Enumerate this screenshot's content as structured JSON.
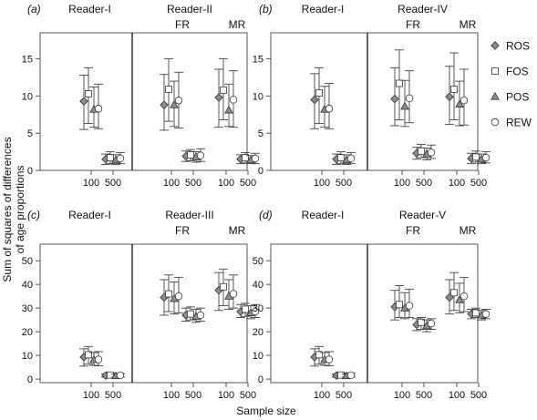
{
  "figure": {
    "ylabel": "Sum of squares of differences\nof age proportions",
    "xlabel": "Sample size",
    "legend": [
      {
        "name": "ROS",
        "marker": "diamond",
        "fill": "#8c8c8c"
      },
      {
        "name": "FOS",
        "marker": "square",
        "fill": "#ffffff"
      },
      {
        "name": "POS",
        "marker": "triangle",
        "fill": "#8c8c8c"
      },
      {
        "name": "REW",
        "marker": "circle",
        "fill": "#ffffff"
      }
    ],
    "colors": {
      "frame": "#555555",
      "error_bar": "#444444",
      "marker_stroke": "#333333",
      "gray_fill": "#8c8c8c"
    }
  },
  "chart_data": [
    {
      "type": "scatter",
      "panel_label": "(a)",
      "left_title": "Reader-I",
      "right_title": "Reader-II",
      "right_subtitles": [
        "FR",
        "MR"
      ],
      "ylim": [
        0,
        18.5
      ],
      "yticks": [
        0,
        5,
        10,
        15
      ],
      "categories": [
        "100",
        "500",
        "100",
        "500",
        "100",
        "500"
      ],
      "errorbars": "yes",
      "series": [
        {
          "name": "ROS",
          "values": [
            9.3,
            1.5,
            8.8,
            1.9,
            9.8,
            1.5
          ],
          "lower": [
            5.5,
            0.8,
            5.4,
            1.2,
            5.8,
            0.9
          ],
          "upper": [
            12.8,
            2.2,
            12.9,
            2.6,
            13.6,
            2.1
          ]
        },
        {
          "name": "FOS",
          "values": [
            10.3,
            1.7,
            10.9,
            2.1,
            10.8,
            1.7
          ],
          "lower": [
            6.3,
            0.9,
            6.6,
            1.3,
            6.8,
            1.0
          ],
          "upper": [
            13.8,
            2.5,
            15.0,
            2.8,
            15.0,
            2.4
          ]
        },
        {
          "name": "POS",
          "values": [
            8.2,
            1.4,
            8.8,
            1.8,
            8.1,
            1.4
          ],
          "lower": [
            5.8,
            0.8,
            5.9,
            1.1,
            5.9,
            0.9
          ],
          "upper": [
            11.2,
            2.1,
            12.0,
            2.5,
            11.6,
            2.0
          ]
        },
        {
          "name": "REW",
          "values": [
            8.3,
            1.6,
            9.4,
            2.0,
            9.5,
            1.6
          ],
          "lower": [
            5.6,
            0.9,
            5.7,
            1.2,
            5.8,
            0.9
          ],
          "upper": [
            11.6,
            2.4,
            13.2,
            2.9,
            13.4,
            2.3
          ]
        }
      ]
    },
    {
      "type": "scatter",
      "panel_label": "(b)",
      "left_title": "Reader-I",
      "right_title": "Reader-IV",
      "right_subtitles": [
        "FR",
        "MR"
      ],
      "ylim": [
        0,
        18.5
      ],
      "yticks": [
        0,
        5,
        10,
        15
      ],
      "categories": [
        "100",
        "500",
        "100",
        "500",
        "100",
        "500"
      ],
      "errorbars": "yes",
      "series": [
        {
          "name": "ROS",
          "values": [
            9.5,
            1.5,
            9.6,
            2.3,
            9.9,
            1.6
          ],
          "lower": [
            5.6,
            0.8,
            6.0,
            1.5,
            6.2,
            0.9
          ],
          "upper": [
            13.0,
            2.2,
            13.8,
            3.1,
            14.0,
            2.3
          ]
        },
        {
          "name": "FOS",
          "values": [
            10.4,
            1.7,
            11.7,
            2.6,
            10.9,
            1.8
          ],
          "lower": [
            6.3,
            0.9,
            6.8,
            1.7,
            6.8,
            1.1
          ],
          "upper": [
            13.8,
            2.5,
            16.2,
            3.5,
            15.8,
            2.6
          ]
        },
        {
          "name": "POS",
          "values": [
            8.2,
            1.4,
            8.6,
            2.2,
            8.9,
            1.5
          ],
          "lower": [
            5.8,
            0.8,
            5.9,
            1.4,
            6.0,
            0.9
          ],
          "upper": [
            11.3,
            2.1,
            12.1,
            3.0,
            12.0,
            2.2
          ]
        },
        {
          "name": "REW",
          "values": [
            8.3,
            1.6,
            9.7,
            2.4,
            9.4,
            1.7
          ],
          "lower": [
            5.6,
            0.9,
            6.4,
            1.6,
            6.1,
            1.0
          ],
          "upper": [
            11.7,
            2.4,
            13.4,
            3.4,
            13.6,
            2.5
          ]
        }
      ]
    },
    {
      "type": "scatter",
      "panel_label": "(c)",
      "left_title": "Reader-I",
      "right_title": "Reader-III",
      "right_subtitles": [
        "FR",
        "MR"
      ],
      "ylim": [
        -1.5,
        57
      ],
      "yticks": [
        0,
        10,
        20,
        30,
        40,
        50
      ],
      "categories": [
        "100",
        "500",
        "100",
        "500",
        "100",
        "500"
      ],
      "errorbars": "yes",
      "series": [
        {
          "name": "ROS",
          "values": [
            9.3,
            1.5,
            34.5,
            27.0,
            37.5,
            28.5
          ],
          "lower": [
            5.5,
            0.8,
            27.0,
            24.5,
            29.0,
            26.0
          ],
          "upper": [
            12.8,
            2.2,
            42.0,
            30.0,
            45.0,
            31.5
          ]
        },
        {
          "name": "FOS",
          "values": [
            10.3,
            1.7,
            36.0,
            27.5,
            39.0,
            29.5
          ],
          "lower": [
            6.3,
            0.9,
            28.5,
            25.0,
            31.0,
            26.5
          ],
          "upper": [
            13.8,
            2.5,
            44.0,
            30.5,
            46.5,
            32.0
          ]
        },
        {
          "name": "POS",
          "values": [
            8.2,
            1.4,
            34.0,
            26.5,
            35.0,
            28.0
          ],
          "lower": [
            5.8,
            0.8,
            27.5,
            24.0,
            29.5,
            25.5
          ],
          "upper": [
            11.2,
            2.1,
            41.0,
            29.5,
            42.0,
            31.0
          ]
        },
        {
          "name": "REW",
          "values": [
            8.3,
            1.6,
            35.0,
            27.0,
            36.0,
            28.5
          ],
          "lower": [
            5.6,
            0.9,
            28.0,
            24.5,
            30.0,
            26.0
          ],
          "upper": [
            11.6,
            2.4,
            43.0,
            30.0,
            44.0,
            31.5
          ]
        }
      ]
    },
    {
      "type": "scatter",
      "panel_label": "(d)",
      "left_title": "Reader-I",
      "right_title": "Reader-V",
      "right_subtitles": [
        "FR",
        "MR"
      ],
      "ylim": [
        -1.5,
        57
      ],
      "yticks": [
        0,
        10,
        20,
        30,
        40,
        50
      ],
      "categories": [
        "100",
        "500",
        "100",
        "500",
        "100",
        "500"
      ],
      "errorbars": "yes",
      "series": [
        {
          "name": "ROS",
          "values": [
            9.3,
            1.5,
            30.5,
            23.0,
            34.5,
            27.5
          ],
          "lower": [
            5.5,
            0.8,
            25.0,
            20.5,
            27.5,
            25.5
          ],
          "upper": [
            12.8,
            2.2,
            37.5,
            25.5,
            42.0,
            29.5
          ]
        },
        {
          "name": "FOS",
          "values": [
            10.3,
            1.7,
            31.5,
            24.0,
            36.5,
            28.0
          ],
          "lower": [
            6.3,
            0.9,
            26.0,
            21.0,
            29.0,
            26.0
          ],
          "upper": [
            13.8,
            2.5,
            39.5,
            26.0,
            45.0,
            30.0
          ]
        },
        {
          "name": "POS",
          "values": [
            8.2,
            1.4,
            30.0,
            22.5,
            33.5,
            27.0
          ],
          "lower": [
            5.8,
            0.8,
            25.5,
            20.0,
            28.0,
            25.0
          ],
          "upper": [
            11.2,
            2.1,
            36.5,
            25.0,
            40.5,
            29.0
          ]
        },
        {
          "name": "REW",
          "values": [
            8.3,
            1.6,
            31.0,
            23.5,
            35.0,
            27.5
          ],
          "lower": [
            5.6,
            0.9,
            26.0,
            21.0,
            28.5,
            25.5
          ],
          "upper": [
            11.6,
            2.4,
            38.0,
            25.5,
            43.0,
            29.5
          ]
        }
      ]
    }
  ]
}
